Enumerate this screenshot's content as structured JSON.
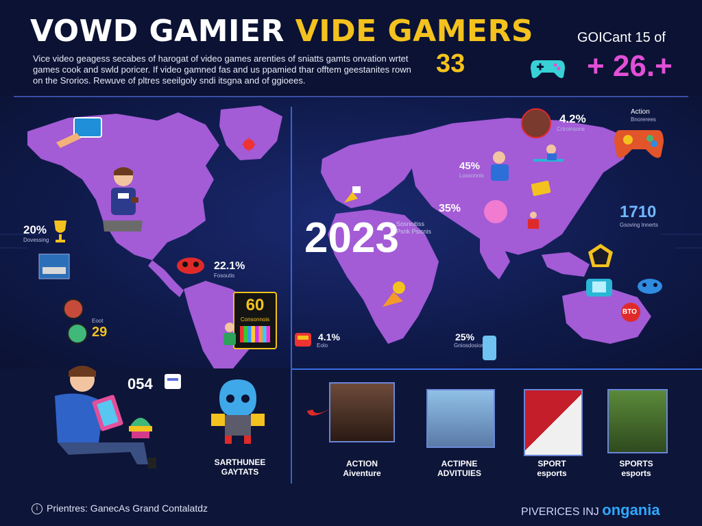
{
  "header": {
    "title_white": "VOWD GAMIER ",
    "title_yellow": "VIDE  GAMERS",
    "intro": "Vice video geagess secabes of harogat of video games arenties of sniatts gamts onvation wrtet games cook and swld poricer. If video gamned fas and us ppamied thar offtem geestanites rown on the Srorios. Rewuve of pltres seeilgoly sndi itsgna and of ggioees.",
    "stat_value": "33",
    "stat_label": "GOICant 15 of",
    "stat_big": "+ 26.+"
  },
  "map": {
    "year": "2023",
    "year_note": "Sosnnitiss Psrik Psisnis",
    "stats": [
      {
        "id": "stat-20",
        "value": "20%",
        "sub": "Dovessing"
      },
      {
        "id": "stat-60",
        "value": "60",
        "sub": "Consonnois"
      },
      {
        "id": "stat-22",
        "value": "22.1%",
        "sub": "Fosoutis"
      },
      {
        "id": "stat-29",
        "value": "29",
        "sub": "Eoot"
      },
      {
        "id": "stat-054",
        "value": "054",
        "sub": ""
      },
      {
        "id": "stat-42",
        "value": "4.2%",
        "sub": "Crtroinsons"
      },
      {
        "id": "stat-45",
        "value": "45%",
        "sub": "Lossonnis"
      },
      {
        "id": "stat-35",
        "value": "35%",
        "sub": ""
      },
      {
        "id": "stat-1710",
        "value": "1710",
        "sub": "Gsoving Innerts"
      },
      {
        "id": "stat-41",
        "value": "4.1%",
        "sub": "Eolo"
      },
      {
        "id": "stat-25",
        "value": "25%",
        "sub": "Gniosdosiors"
      },
      {
        "id": "stat-bto",
        "value": "BTO",
        "sub": ""
      },
      {
        "id": "stat-action-badge",
        "value": "Action",
        "sub": "Bnorerees"
      }
    ]
  },
  "cards": [
    {
      "id": "card-sarthunee",
      "label": "SARTHUNEE GAYTATS"
    },
    {
      "id": "card-action-adventure",
      "label": "ACTION Aiventure"
    },
    {
      "id": "card-actipne",
      "label": "ACTIPNE ADVITUIES"
    },
    {
      "id": "card-sport",
      "label": "SPORT esports"
    },
    {
      "id": "card-sports",
      "label": "SPORTS esports"
    }
  ],
  "footer": {
    "source_icon": "info-icon",
    "source": "Prientres: GanecAs Grand Contalatdz",
    "brand_prefix": "PIVERICES INJ ",
    "brand_name": "ongania"
  },
  "colors": {
    "background": "#0d1538",
    "land": "#a35bd6",
    "accent_yellow": "#f4c21e",
    "accent_pink": "#e24fd6",
    "divider_blue": "#3b6de0"
  }
}
